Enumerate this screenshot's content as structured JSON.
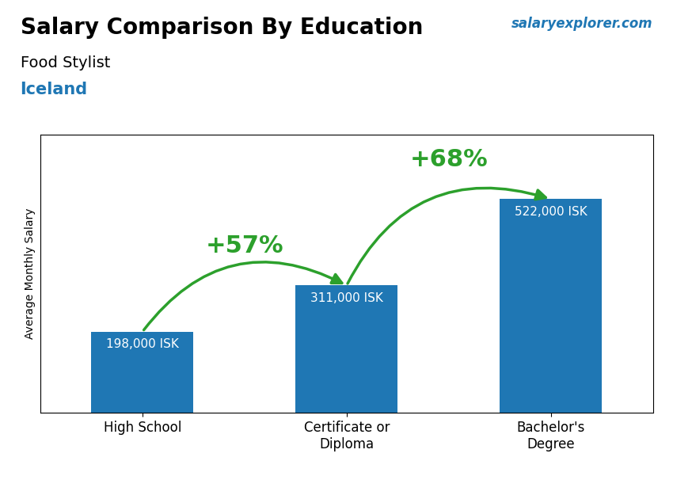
{
  "chart_data": {
    "type": "bar",
    "title": "Salary Comparison By Education",
    "subtitle": [
      "Food Stylist",
      "Iceland"
    ],
    "ylabel": "Average Monthly Salary",
    "categories": [
      "High School",
      "Certificate or\nDiploma",
      "Bachelor's\nDegree"
    ],
    "values": [
      198000,
      311000,
      522000
    ],
    "value_labels": [
      "198,000 ISK",
      "311,000 ISK",
      "522,000 ISK"
    ],
    "data_labels": true,
    "ylim": [
      0,
      680000
    ],
    "yticks": [],
    "tick_labels": "x",
    "annotations": [
      {
        "text": "+57%",
        "from": "High School",
        "to": "Certificate or\nDiploma"
      },
      {
        "text": "+68%",
        "from": "Certificate or\nDiploma",
        "to": "Bachelor's\nDegree"
      },
      {
        "text": "salaryexplorer.com"
      }
    ]
  }
}
